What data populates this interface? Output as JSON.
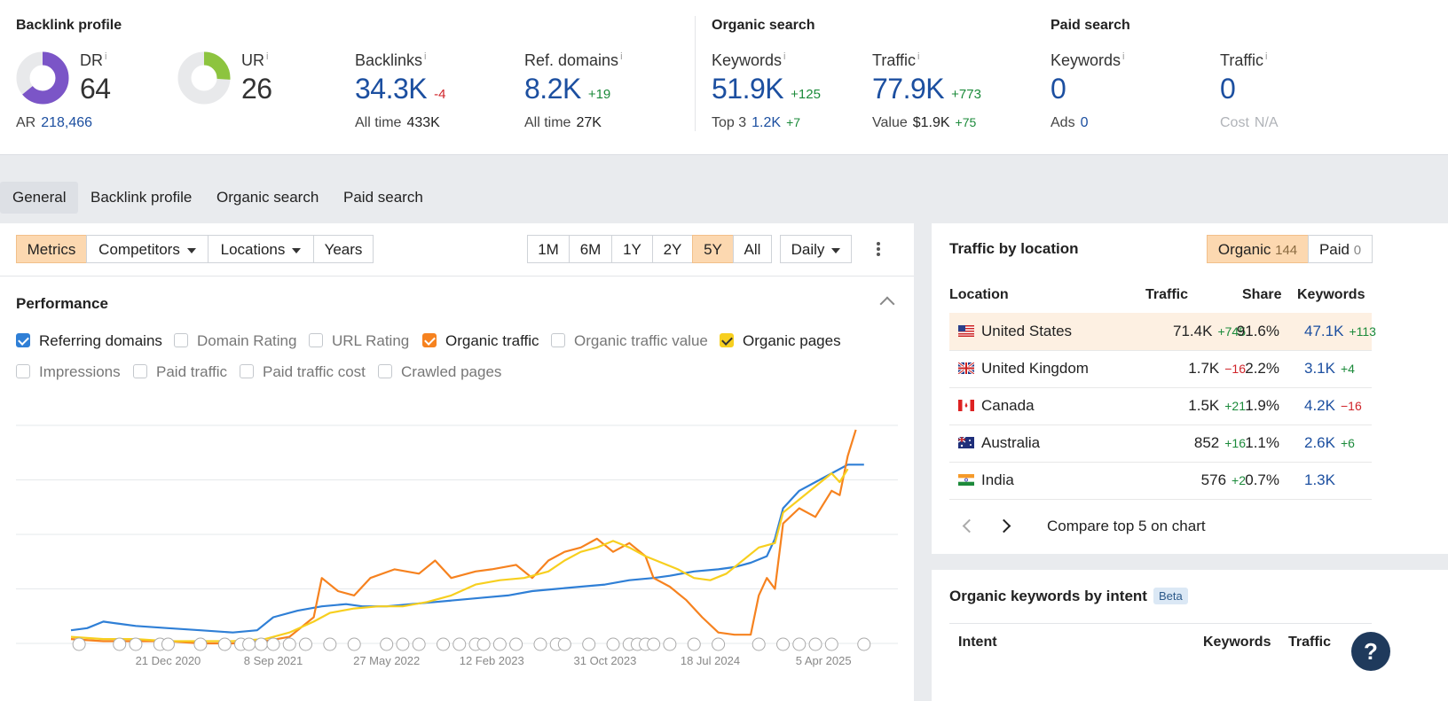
{
  "backlink": {
    "title": "Backlink profile",
    "dr": {
      "label": "DR",
      "info": "i",
      "value": "64",
      "fill": 0.64
    },
    "ar": {
      "label": "AR",
      "value": "218,466"
    },
    "ur": {
      "label": "UR",
      "info": "i",
      "value": "26",
      "fill": 0.26
    },
    "backlinks": {
      "label": "Backlinks",
      "info": "i",
      "value": "34.3K",
      "delta": "-4",
      "sub_label": "All time",
      "sub_value": "433K"
    },
    "ref_domains": {
      "label": "Ref. domains",
      "info": "i",
      "value": "8.2K",
      "delta": "+19",
      "sub_label": "All time",
      "sub_value": "27K"
    }
  },
  "organic": {
    "title": "Organic search",
    "keywords": {
      "label": "Keywords",
      "info": "i",
      "value": "51.9K",
      "delta": "+125",
      "sub_label": "Top 3",
      "sub_value": "1.2K",
      "sub_delta": "+7"
    },
    "traffic": {
      "label": "Traffic",
      "info": "i",
      "value": "77.9K",
      "delta": "+773",
      "sub_label": "Value",
      "sub_value": "$1.9K",
      "sub_delta": "+75"
    }
  },
  "paid": {
    "title": "Paid search",
    "keywords": {
      "label": "Keywords",
      "info": "i",
      "value": "0",
      "sub_label": "Ads",
      "sub_value": "0"
    },
    "traffic": {
      "label": "Traffic",
      "info": "i",
      "value": "0",
      "sub_label": "Cost",
      "sub_value": "N/A"
    }
  },
  "tabs": [
    "General",
    "Backlink profile",
    "Organic search",
    "Paid search"
  ],
  "controls": {
    "metrics": "Metrics",
    "competitors": "Competitors",
    "locations": "Locations",
    "years": "Years",
    "ranges": [
      "1M",
      "6M",
      "1Y",
      "2Y",
      "5Y",
      "All"
    ],
    "active_range": "5Y",
    "interval": "Daily"
  },
  "performance": {
    "title": "Performance",
    "checkboxes": [
      {
        "label": "Referring domains",
        "checked": true,
        "color": "#2f7fd6"
      },
      {
        "label": "Domain Rating",
        "checked": false
      },
      {
        "label": "URL Rating",
        "checked": false
      },
      {
        "label": "Organic traffic",
        "checked": true,
        "color": "#f6821f"
      },
      {
        "label": "Organic traffic value",
        "checked": false
      },
      {
        "label": "Organic pages",
        "checked": true,
        "color": "#f7cf1f"
      },
      {
        "label": "Impressions",
        "checked": false
      },
      {
        "label": "Paid traffic",
        "checked": false
      },
      {
        "label": "Paid traffic cost",
        "checked": false
      },
      {
        "label": "Crawled pages",
        "checked": false
      }
    ]
  },
  "chart_data": {
    "type": "line",
    "x_ticks": [
      "21 Dec 2020",
      "8 Sep 2021",
      "27 May 2022",
      "12 Feb 2023",
      "31 Oct 2023",
      "18 Jul 2024",
      "5 Apr 2025"
    ],
    "x_domain": [
      "2020-04",
      "2025-06"
    ],
    "y_grid_lines": 5,
    "y_label_values_shown": false,
    "series": [
      {
        "key": "referring_domains",
        "color": "#2f7fd6",
        "values": [
          [
            0.0,
            0.06
          ],
          [
            0.02,
            0.07
          ],
          [
            0.04,
            0.1
          ],
          [
            0.06,
            0.09
          ],
          [
            0.08,
            0.08
          ],
          [
            0.12,
            0.07
          ],
          [
            0.16,
            0.06
          ],
          [
            0.2,
            0.05
          ],
          [
            0.23,
            0.06
          ],
          [
            0.25,
            0.12
          ],
          [
            0.28,
            0.15
          ],
          [
            0.31,
            0.17
          ],
          [
            0.34,
            0.18
          ],
          [
            0.36,
            0.17
          ],
          [
            0.39,
            0.17
          ],
          [
            0.42,
            0.18
          ],
          [
            0.45,
            0.19
          ],
          [
            0.48,
            0.2
          ],
          [
            0.51,
            0.21
          ],
          [
            0.54,
            0.22
          ],
          [
            0.57,
            0.24
          ],
          [
            0.6,
            0.25
          ],
          [
            0.63,
            0.26
          ],
          [
            0.66,
            0.27
          ],
          [
            0.69,
            0.29
          ],
          [
            0.72,
            0.3
          ],
          [
            0.74,
            0.31
          ],
          [
            0.77,
            0.33
          ],
          [
            0.8,
            0.34
          ],
          [
            0.82,
            0.35
          ],
          [
            0.84,
            0.37
          ],
          [
            0.86,
            0.4
          ],
          [
            0.87,
            0.48
          ],
          [
            0.88,
            0.62
          ],
          [
            0.89,
            0.66
          ],
          [
            0.9,
            0.7
          ],
          [
            0.92,
            0.74
          ],
          [
            0.94,
            0.78
          ],
          [
            0.96,
            0.82
          ],
          [
            0.98,
            0.82
          ]
        ]
      },
      {
        "key": "organic_traffic",
        "color": "#f6821f",
        "values": [
          [
            0.0,
            0.02
          ],
          [
            0.04,
            0.01
          ],
          [
            0.08,
            0.01
          ],
          [
            0.12,
            0.01
          ],
          [
            0.16,
            0.0
          ],
          [
            0.2,
            0.0
          ],
          [
            0.24,
            0.01
          ],
          [
            0.27,
            0.03
          ],
          [
            0.3,
            0.12
          ],
          [
            0.31,
            0.3
          ],
          [
            0.33,
            0.24
          ],
          [
            0.35,
            0.22
          ],
          [
            0.37,
            0.3
          ],
          [
            0.4,
            0.34
          ],
          [
            0.43,
            0.32
          ],
          [
            0.45,
            0.38
          ],
          [
            0.47,
            0.3
          ],
          [
            0.5,
            0.33
          ],
          [
            0.52,
            0.34
          ],
          [
            0.55,
            0.36
          ],
          [
            0.57,
            0.3
          ],
          [
            0.59,
            0.38
          ],
          [
            0.61,
            0.42
          ],
          [
            0.63,
            0.44
          ],
          [
            0.65,
            0.48
          ],
          [
            0.67,
            0.42
          ],
          [
            0.69,
            0.46
          ],
          [
            0.71,
            0.4
          ],
          [
            0.72,
            0.3
          ],
          [
            0.74,
            0.26
          ],
          [
            0.76,
            0.2
          ],
          [
            0.78,
            0.12
          ],
          [
            0.8,
            0.05
          ],
          [
            0.82,
            0.04
          ],
          [
            0.84,
            0.04
          ],
          [
            0.85,
            0.22
          ],
          [
            0.86,
            0.3
          ],
          [
            0.87,
            0.25
          ],
          [
            0.88,
            0.55
          ],
          [
            0.9,
            0.62
          ],
          [
            0.92,
            0.58
          ],
          [
            0.94,
            0.7
          ],
          [
            0.95,
            0.68
          ],
          [
            0.96,
            0.86
          ],
          [
            0.97,
            0.98
          ]
        ]
      },
      {
        "key": "organic_pages",
        "color": "#f7cf1f",
        "values": [
          [
            0.0,
            0.03
          ],
          [
            0.04,
            0.02
          ],
          [
            0.08,
            0.02
          ],
          [
            0.12,
            0.01
          ],
          [
            0.16,
            0.01
          ],
          [
            0.2,
            0.01
          ],
          [
            0.24,
            0.02
          ],
          [
            0.27,
            0.05
          ],
          [
            0.3,
            0.1
          ],
          [
            0.32,
            0.14
          ],
          [
            0.35,
            0.16
          ],
          [
            0.38,
            0.17
          ],
          [
            0.41,
            0.17
          ],
          [
            0.44,
            0.19
          ],
          [
            0.47,
            0.22
          ],
          [
            0.5,
            0.27
          ],
          [
            0.53,
            0.29
          ],
          [
            0.56,
            0.3
          ],
          [
            0.59,
            0.33
          ],
          [
            0.61,
            0.38
          ],
          [
            0.63,
            0.42
          ],
          [
            0.65,
            0.44
          ],
          [
            0.67,
            0.47
          ],
          [
            0.69,
            0.44
          ],
          [
            0.71,
            0.4
          ],
          [
            0.73,
            0.37
          ],
          [
            0.75,
            0.34
          ],
          [
            0.77,
            0.3
          ],
          [
            0.79,
            0.29
          ],
          [
            0.81,
            0.32
          ],
          [
            0.83,
            0.38
          ],
          [
            0.85,
            0.44
          ],
          [
            0.87,
            0.46
          ],
          [
            0.88,
            0.6
          ],
          [
            0.9,
            0.66
          ],
          [
            0.92,
            0.72
          ],
          [
            0.94,
            0.78
          ],
          [
            0.95,
            0.74
          ],
          [
            0.96,
            0.8
          ]
        ]
      }
    ]
  },
  "location": {
    "title": "Traffic by location",
    "toggle": {
      "organic_label": "Organic",
      "organic_count": "144",
      "paid_label": "Paid",
      "paid_count": "0"
    },
    "headers": {
      "location": "Location",
      "traffic": "Traffic",
      "share": "Share",
      "keywords": "Keywords"
    },
    "rows": [
      {
        "flag": "us-flag",
        "name": "United States",
        "traffic": "71.4K",
        "traffic_delta": "+745",
        "traffic_delta_type": "pos",
        "share": "91.6%",
        "keywords": "47.1K",
        "keywords_delta": "+113",
        "keywords_delta_type": "pos"
      },
      {
        "flag": "uk-flag",
        "name": "United Kingdom",
        "traffic": "1.7K",
        "traffic_delta": "−16",
        "traffic_delta_type": "neg",
        "share": "2.2%",
        "keywords": "3.1K",
        "keywords_delta": "+4",
        "keywords_delta_type": "pos"
      },
      {
        "flag": "ca-flag",
        "name": "Canada",
        "traffic": "1.5K",
        "traffic_delta": "+21",
        "traffic_delta_type": "pos",
        "share": "1.9%",
        "keywords": "4.2K",
        "keywords_delta": "−16",
        "keywords_delta_type": "neg"
      },
      {
        "flag": "au-flag",
        "name": "Australia",
        "traffic": "852",
        "traffic_delta": "+16",
        "traffic_delta_type": "pos",
        "share": "1.1%",
        "keywords": "2.6K",
        "keywords_delta": "+6",
        "keywords_delta_type": "pos"
      },
      {
        "flag": "in-flag",
        "name": "India",
        "traffic": "576",
        "traffic_delta": "+2",
        "traffic_delta_type": "pos",
        "share": "0.7%",
        "keywords": "1.3K",
        "keywords_delta": "",
        "keywords_delta_type": "pos"
      }
    ],
    "compare": "Compare top 5 on chart"
  },
  "intent": {
    "title": "Organic keywords by intent",
    "badge": "Beta",
    "headers": {
      "intent": "Intent",
      "keywords": "Keywords",
      "traffic": "Traffic"
    }
  },
  "help": "?"
}
